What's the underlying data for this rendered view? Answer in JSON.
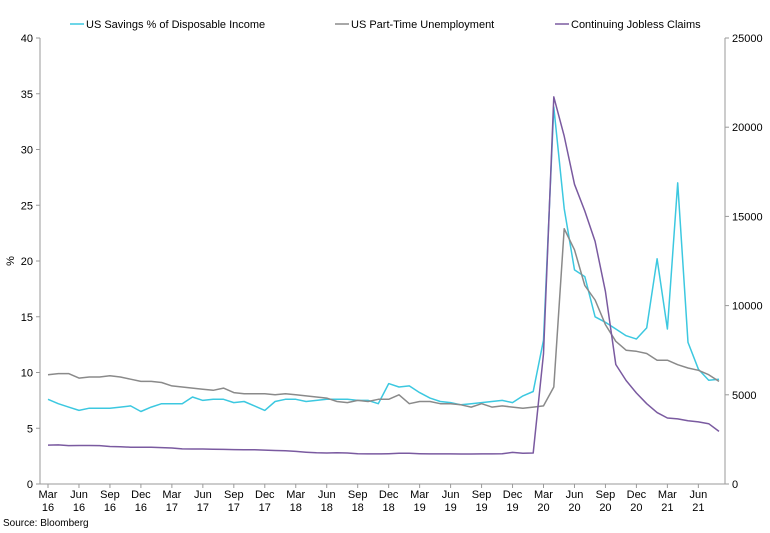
{
  "source": "Source: Bloomberg",
  "colors": {
    "savings": "#3cc8e0",
    "parttime": "#8a8a8a",
    "jobless": "#7a5aa0",
    "axis": "#9a9a9a"
  },
  "chart_data": {
    "type": "line",
    "y_left": {
      "label": "%",
      "ylim": [
        0,
        40
      ],
      "ticks": [
        "0",
        "5",
        "10",
        "15",
        "20",
        "25",
        "30",
        "35",
        "40"
      ]
    },
    "y_right": {
      "ylim": [
        0,
        25000
      ],
      "ticks": [
        "0",
        "5000",
        "10000",
        "15000",
        "20000",
        "25000"
      ]
    },
    "x_ticks": [
      {
        "m": "Mar",
        "y": "16"
      },
      {
        "m": "Jun",
        "y": "16"
      },
      {
        "m": "Sep",
        "y": "16"
      },
      {
        "m": "Dec",
        "y": "16"
      },
      {
        "m": "Mar",
        "y": "17"
      },
      {
        "m": "Jun",
        "y": "17"
      },
      {
        "m": "Sep",
        "y": "17"
      },
      {
        "m": "Dec",
        "y": "17"
      },
      {
        "m": "Mar",
        "y": "18"
      },
      {
        "m": "Jun",
        "y": "18"
      },
      {
        "m": "Sep",
        "y": "18"
      },
      {
        "m": "Dec",
        "y": "18"
      },
      {
        "m": "Mar",
        "y": "19"
      },
      {
        "m": "Jun",
        "y": "19"
      },
      {
        "m": "Sep",
        "y": "19"
      },
      {
        "m": "Dec",
        "y": "19"
      },
      {
        "m": "Mar",
        "y": "20"
      },
      {
        "m": "Jun",
        "y": "20"
      },
      {
        "m": "Sep",
        "y": "20"
      },
      {
        "m": "Dec",
        "y": "20"
      },
      {
        "m": "Mar",
        "y": "21"
      },
      {
        "m": "Jun",
        "y": "21"
      }
    ],
    "x_start": "2016-03",
    "series": [
      {
        "name": "US Savings % of Disposable Income",
        "axis": "left",
        "values": [
          7.6,
          7.2,
          6.9,
          6.6,
          6.8,
          6.8,
          6.8,
          6.9,
          7.0,
          6.5,
          6.9,
          7.2,
          7.2,
          7.2,
          7.8,
          7.5,
          7.6,
          7.6,
          7.3,
          7.4,
          7.0,
          6.6,
          7.4,
          7.6,
          7.6,
          7.4,
          7.5,
          7.6,
          7.6,
          7.6,
          7.5,
          7.5,
          7.2,
          9.0,
          8.7,
          8.8,
          8.2,
          7.7,
          7.4,
          7.3,
          7.1,
          7.2,
          7.3,
          7.4,
          7.5,
          7.3,
          7.9,
          8.3,
          12.9,
          33.8,
          24.7,
          19.2,
          18.6,
          15.0,
          14.5,
          13.9,
          13.3,
          13.0,
          14.0,
          20.2,
          13.9,
          27.0,
          12.7,
          10.3,
          9.3,
          9.4
        ]
      },
      {
        "name": "US Part-Time Unemployment",
        "axis": "left",
        "values": [
          9.8,
          9.9,
          9.9,
          9.5,
          9.6,
          9.6,
          9.7,
          9.6,
          9.4,
          9.2,
          9.2,
          9.1,
          8.8,
          8.7,
          8.6,
          8.5,
          8.4,
          8.6,
          8.2,
          8.1,
          8.1,
          8.1,
          8.0,
          8.1,
          8.0,
          7.9,
          7.8,
          7.7,
          7.4,
          7.3,
          7.5,
          7.4,
          7.6,
          7.6,
          8.0,
          7.2,
          7.4,
          7.4,
          7.2,
          7.2,
          7.1,
          6.9,
          7.2,
          6.9,
          7.0,
          6.9,
          6.8,
          6.9,
          7.0,
          8.7,
          22.9,
          21.0,
          17.8,
          16.5,
          14.3,
          12.8,
          12.0,
          11.9,
          11.7,
          11.1,
          11.1,
          10.7,
          10.4,
          10.2,
          9.8,
          9.2
        ]
      },
      {
        "name": "Continuing Jobless Claims",
        "axis": "right",
        "values": [
          2180,
          2190,
          2150,
          2160,
          2160,
          2150,
          2100,
          2090,
          2060,
          2060,
          2060,
          2040,
          2020,
          1970,
          1960,
          1960,
          1950,
          1940,
          1930,
          1920,
          1920,
          1900,
          1880,
          1860,
          1830,
          1780,
          1750,
          1740,
          1750,
          1740,
          1700,
          1690,
          1690,
          1700,
          1720,
          1720,
          1700,
          1690,
          1690,
          1690,
          1680,
          1680,
          1690,
          1690,
          1700,
          1770,
          1720,
          1740,
          7300,
          21700,
          19500,
          16800,
          15300,
          13600,
          10800,
          6700,
          5800,
          5100,
          4500,
          4000,
          3700,
          3650,
          3550,
          3480,
          3380,
          2950
        ]
      }
    ]
  }
}
